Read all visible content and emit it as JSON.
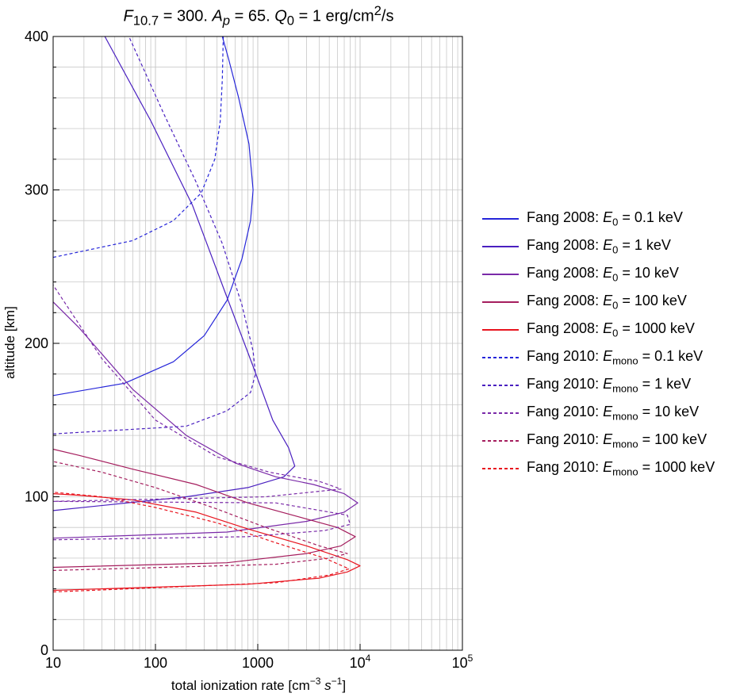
{
  "title": {
    "f_symbol": "F",
    "f_sub": "10.7",
    "f_value": " = 300. ",
    "a_symbol": "A",
    "a_sub": "p",
    "a_value": " = 65. ",
    "q_symbol": "Q",
    "q_sub": "0",
    "q_value": " = 1 erg/cm",
    "q_sup": "2",
    "q_unit": "/s"
  },
  "chart_data": {
    "type": "line",
    "x_scale": "log",
    "xlim": [
      10,
      100000
    ],
    "ylim": [
      0,
      400
    ],
    "xlabel_parts": {
      "pre": "total ionization rate [cm",
      "sup1": "−3",
      "mid": " ",
      "s": "s",
      "sup2": "−1",
      "post": "]"
    },
    "ylabel": "altitude [km]",
    "x_tick_labels": [
      "10",
      "100",
      "1000"
    ],
    "x_tick_pow_labels": [
      {
        "base": "10",
        "exp": "4"
      },
      {
        "base": "10",
        "exp": "5"
      }
    ],
    "y_ticks": [
      0,
      100,
      200,
      300,
      400
    ],
    "grid": true,
    "legend_position": "right",
    "series": [
      {
        "name": "Fang 2008: E0 = 0.1 keV",
        "style": "solid",
        "color": "#2525d9",
        "points": [
          [
            10,
            166
          ],
          [
            50,
            174
          ],
          [
            150,
            188
          ],
          [
            300,
            205
          ],
          [
            500,
            228
          ],
          [
            700,
            255
          ],
          [
            850,
            280
          ],
          [
            900,
            300
          ],
          [
            820,
            330
          ],
          [
            650,
            360
          ],
          [
            520,
            385
          ],
          [
            450,
            400
          ]
        ]
      },
      {
        "name": "Fang 2008: E0 = 1 keV",
        "style": "solid",
        "color": "#4a20c0",
        "points": [
          [
            10,
            91
          ],
          [
            200,
            100
          ],
          [
            800,
            106
          ],
          [
            1800,
            113
          ],
          [
            2300,
            120
          ],
          [
            2000,
            132
          ],
          [
            1400,
            150
          ],
          [
            900,
            185
          ],
          [
            500,
            230
          ],
          [
            230,
            290
          ],
          [
            90,
            345
          ],
          [
            32,
            400
          ]
        ]
      },
      {
        "name": "Fang 2008: E0 = 10 keV",
        "style": "solid",
        "color": "#7a2aa8",
        "points": [
          [
            10,
            73
          ],
          [
            500,
            77
          ],
          [
            3000,
            84
          ],
          [
            7000,
            90
          ],
          [
            9500,
            96
          ],
          [
            7000,
            102
          ],
          [
            3500,
            108
          ],
          [
            1500,
            113
          ],
          [
            600,
            122
          ],
          [
            200,
            140
          ],
          [
            60,
            170
          ],
          [
            18,
            210
          ],
          [
            10,
            227
          ]
        ]
      },
      {
        "name": "Fang 2008: E0 = 100 keV",
        "style": "solid",
        "color": "#a51e5e",
        "points": [
          [
            10,
            54
          ],
          [
            500,
            57
          ],
          [
            3000,
            63
          ],
          [
            6500,
            68
          ],
          [
            9000,
            74
          ],
          [
            6000,
            80
          ],
          [
            2500,
            87
          ],
          [
            800,
            96
          ],
          [
            250,
            108
          ],
          [
            60,
            118
          ],
          [
            18,
            127
          ],
          [
            10,
            131
          ]
        ]
      },
      {
        "name": "Fang 2008: E0 = 1000 keV",
        "style": "solid",
        "color": "#e8141e",
        "points": [
          [
            10,
            39
          ],
          [
            800,
            43
          ],
          [
            4000,
            47
          ],
          [
            7500,
            51
          ],
          [
            10000,
            55
          ],
          [
            7500,
            59
          ],
          [
            3000,
            68
          ],
          [
            800,
            79
          ],
          [
            250,
            90
          ],
          [
            60,
            98
          ],
          [
            18,
            101
          ],
          [
            10,
            102
          ]
        ]
      },
      {
        "name": "Fang 2010: Emono = 0.1 keV",
        "style": "dashed",
        "color": "#2525d9",
        "points": [
          [
            10,
            256
          ],
          [
            60,
            267
          ],
          [
            150,
            280
          ],
          [
            280,
            298
          ],
          [
            380,
            320
          ],
          [
            430,
            345
          ],
          [
            450,
            372
          ],
          [
            460,
            400
          ]
        ]
      },
      {
        "name": "Fang 2010: Emono = 1 keV",
        "style": "dashed",
        "color": "#4a20c0",
        "points": [
          [
            10,
            141
          ],
          [
            200,
            146
          ],
          [
            500,
            156
          ],
          [
            850,
            168
          ],
          [
            950,
            180
          ],
          [
            900,
            195
          ],
          [
            700,
            225
          ],
          [
            450,
            265
          ],
          [
            250,
            305
          ],
          [
            120,
            350
          ],
          [
            55,
            400
          ]
        ]
      },
      {
        "name": "Fang 2010: Emono = 10 keV",
        "style": "dashed",
        "color": "#7a2aa8",
        "points": [
          [
            10,
            72
          ],
          [
            800,
            74
          ],
          [
            4500,
            78
          ],
          [
            8000,
            82
          ],
          [
            7500,
            88
          ],
          [
            1500,
            96
          ],
          [
            10,
            97
          ],
          [
            1200,
            100
          ],
          [
            6500,
            105
          ],
          [
            4000,
            110
          ],
          [
            1300,
            116
          ],
          [
            400,
            126
          ],
          [
            100,
            150
          ],
          [
            30,
            190
          ],
          [
            10,
            238
          ]
        ]
      },
      {
        "name": "Fang 2010: Emono = 100 keV",
        "style": "dashed",
        "color": "#a51e5e",
        "points": [
          [
            10,
            52
          ],
          [
            1500,
            56
          ],
          [
            5000,
            60
          ],
          [
            7500,
            63
          ],
          [
            4000,
            68
          ],
          [
            1200,
            80
          ],
          [
            400,
            92
          ],
          [
            100,
            106
          ],
          [
            30,
            116
          ],
          [
            10,
            123
          ]
        ]
      },
      {
        "name": "Fang 2010: Emono = 1000 keV",
        "style": "dashed",
        "color": "#e8141e",
        "points": [
          [
            10,
            38
          ],
          [
            1500,
            44
          ],
          [
            5000,
            49
          ],
          [
            7800,
            53
          ],
          [
            4500,
            60
          ],
          [
            1500,
            70
          ],
          [
            400,
            83
          ],
          [
            100,
            93
          ],
          [
            30,
            100
          ],
          [
            10,
            103
          ]
        ]
      }
    ]
  },
  "legend": {
    "items": [
      {
        "prefix": "Fang 2008: ",
        "sym": "E",
        "sub": "0",
        "suffix": " = 0.1 keV",
        "color": "#2525d9",
        "style": "solid"
      },
      {
        "prefix": "Fang 2008: ",
        "sym": "E",
        "sub": "0",
        "suffix": " = 1 keV",
        "color": "#4a20c0",
        "style": "solid"
      },
      {
        "prefix": "Fang 2008: ",
        "sym": "E",
        "sub": "0",
        "suffix": " = 10 keV",
        "color": "#7a2aa8",
        "style": "solid"
      },
      {
        "prefix": "Fang 2008: ",
        "sym": "E",
        "sub": "0",
        "suffix": " = 100 keV",
        "color": "#a51e5e",
        "style": "solid"
      },
      {
        "prefix": "Fang 2008: ",
        "sym": "E",
        "sub": "0",
        "suffix": " = 1000 keV",
        "color": "#e8141e",
        "style": "solid"
      },
      {
        "prefix": "Fang 2010: ",
        "sym": "E",
        "sub": "mono",
        "suffix": " = 0.1 keV",
        "color": "#2525d9",
        "style": "dashed"
      },
      {
        "prefix": "Fang 2010: ",
        "sym": "E",
        "sub": "mono",
        "suffix": " = 1 keV",
        "color": "#4a20c0",
        "style": "dashed"
      },
      {
        "prefix": "Fang 2010: ",
        "sym": "E",
        "sub": "mono",
        "suffix": " = 10 keV",
        "color": "#7a2aa8",
        "style": "dashed"
      },
      {
        "prefix": "Fang 2010: ",
        "sym": "E",
        "sub": "mono",
        "suffix": " = 100 keV",
        "color": "#a51e5e",
        "style": "dashed"
      },
      {
        "prefix": "Fang 2010: ",
        "sym": "E",
        "sub": "mono",
        "suffix": " = 1000 keV",
        "color": "#e8141e",
        "style": "dashed"
      }
    ]
  }
}
